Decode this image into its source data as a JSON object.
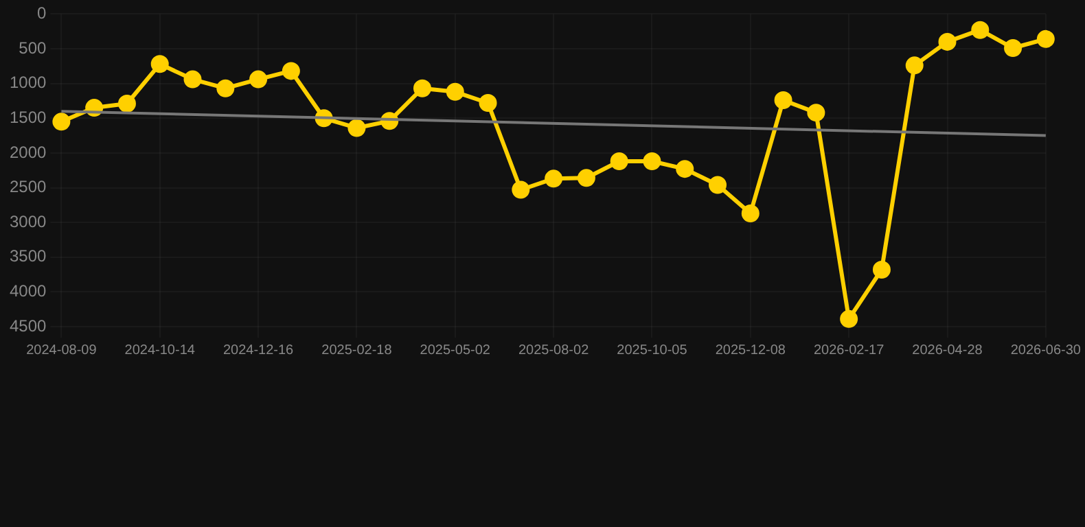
{
  "chart_data": {
    "type": "line",
    "categories": [
      "2024-08-09",
      null,
      null,
      "2024-10-14",
      null,
      null,
      "2024-12-16",
      null,
      null,
      "2025-02-18",
      null,
      null,
      "2025-05-02",
      null,
      null,
      "2025-08-02",
      null,
      null,
      "2025-10-05",
      null,
      null,
      "2025-12-08",
      null,
      null,
      "2026-02-17",
      null,
      null,
      "2026-04-28",
      null,
      null,
      "2026-06-30"
    ],
    "series": [
      {
        "color": "#ffd000",
        "marker": "circle",
        "values": [
          1550,
          1350,
          1290,
          720,
          940,
          1070,
          940,
          820,
          1500,
          1640,
          1540,
          1070,
          1120,
          1280,
          2530,
          2370,
          2360,
          2120,
          2120,
          2230,
          2460,
          2870,
          1240,
          1420,
          4390,
          3680,
          740,
          400,
          230,
          490,
          360
        ]
      },
      {
        "color": "#777777",
        "marker": "none",
        "values": [
          1400,
          null,
          null,
          null,
          null,
          null,
          null,
          null,
          null,
          null,
          null,
          null,
          null,
          null,
          null,
          null,
          null,
          null,
          null,
          null,
          null,
          null,
          null,
          null,
          null,
          null,
          null,
          null,
          null,
          null,
          1750
        ]
      }
    ],
    "ylim": [
      4500,
      0
    ],
    "yticks": [
      0,
      500,
      1000,
      1500,
      2000,
      2500,
      3000,
      3500,
      4000,
      4500
    ],
    "grid": true,
    "legend": false
  }
}
